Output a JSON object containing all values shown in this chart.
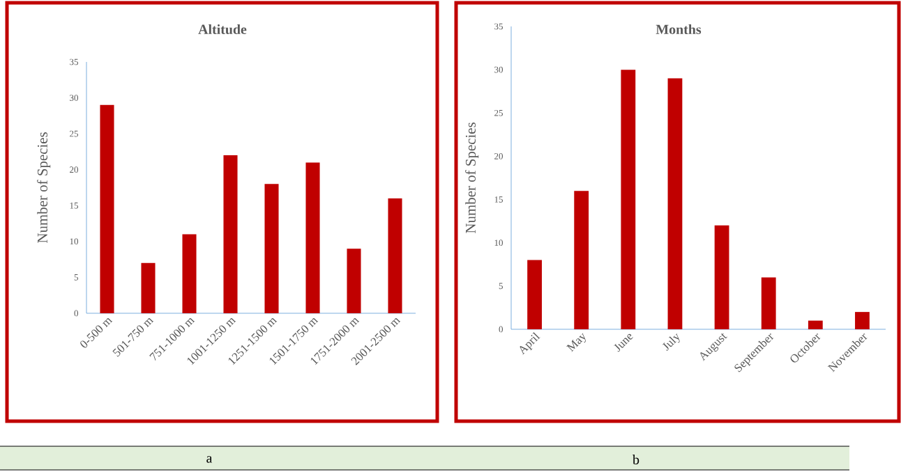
{
  "chart_data": [
    {
      "type": "bar",
      "title": "Altitude",
      "ylabel": "Number of Species",
      "categories": [
        "0-500 m",
        "501-750 m",
        "751-1000 m",
        "1001-1250 m",
        "1251-1500 m",
        "1501-1750 m",
        "1751-2000 m",
        "2001-2500 m"
      ],
      "values": [
        29,
        7,
        11,
        22,
        18,
        21,
        9,
        16
      ],
      "color": "#c00000",
      "ylim": [
        0,
        35
      ],
      "yticks": [
        0,
        5,
        10,
        15,
        20,
        25,
        30,
        35
      ],
      "annotations": [
        "a"
      ]
    },
    {
      "type": "bar",
      "title": "Months",
      "ylabel": "Number of Species",
      "categories": [
        "April",
        "May",
        "June",
        "July",
        "August",
        "September",
        "October",
        "November"
      ],
      "values": [
        8,
        16,
        30,
        29,
        12,
        6,
        1,
        2
      ],
      "color": "#c00000",
      "ylim": [
        0,
        35
      ],
      "yticks": [
        0,
        5,
        10,
        15,
        20,
        25,
        30,
        35
      ],
      "annotations": [
        "b"
      ]
    }
  ]
}
